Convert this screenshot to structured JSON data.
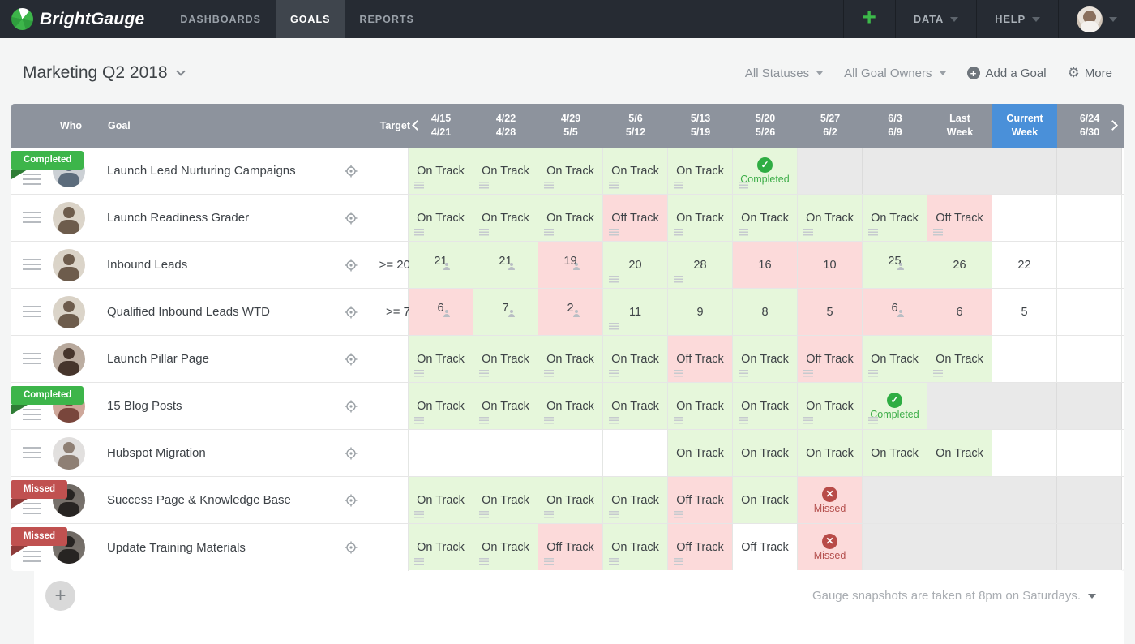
{
  "colors": {
    "accent_green": "#3cb94a",
    "current_week_blue": "#4a90d9",
    "on_track_bg": "#e6f7db",
    "off_track_bg": "#fcdada",
    "disabled_bg": "#e9e9e9",
    "completed_green": "#2fad43",
    "missed_red": "#b84b48"
  },
  "nav": {
    "brand": "BrightGauge",
    "items": [
      {
        "label": "DASHBOARDS",
        "active": false
      },
      {
        "label": "GOALS",
        "active": true
      },
      {
        "label": "REPORTS",
        "active": false
      }
    ],
    "add_label": "+",
    "data_label": "DATA",
    "help_label": "HELP"
  },
  "header": {
    "title": "Marketing Q2 2018",
    "status_filter": "All Statuses",
    "owner_filter": "All Goal Owners",
    "add_goal_label": "Add a Goal",
    "more_label": "More"
  },
  "table": {
    "col_who": "Who",
    "col_goal": "Goal",
    "col_target": "Target",
    "weeks": [
      {
        "top": "4/15",
        "bottom": "4/21"
      },
      {
        "top": "4/22",
        "bottom": "4/28"
      },
      {
        "top": "4/29",
        "bottom": "5/5"
      },
      {
        "top": "5/6",
        "bottom": "5/12"
      },
      {
        "top": "5/13",
        "bottom": "5/19"
      },
      {
        "top": "5/20",
        "bottom": "5/26"
      },
      {
        "top": "5/27",
        "bottom": "6/2"
      },
      {
        "top": "6/3",
        "bottom": "6/9"
      },
      {
        "top": "Last",
        "bottom": "Week"
      },
      {
        "top": "Current",
        "bottom": "Week",
        "current": true
      },
      {
        "top": "6/24",
        "bottom": "6/30"
      }
    ],
    "rows": [
      {
        "badge": "Completed",
        "goal": "Launch Lead Nurturing Campaigns",
        "target": "",
        "avatar": {
          "bg": "#c8cdd2",
          "fg": "#5c6c7c"
        },
        "cells": [
          {
            "text": "On Track",
            "bg": "green",
            "icon": "note"
          },
          {
            "text": "On Track",
            "bg": "green",
            "icon": "note"
          },
          {
            "text": "On Track",
            "bg": "green",
            "icon": "note"
          },
          {
            "text": "On Track",
            "bg": "green",
            "icon": "note"
          },
          {
            "text": "On Track",
            "bg": "green",
            "icon": "note"
          },
          {
            "text": "Completed",
            "bg": "green",
            "mark": "check",
            "icon": "note"
          },
          {
            "bg": "gray"
          },
          {
            "bg": "gray"
          },
          {
            "bg": "gray"
          },
          {
            "bg": "gray"
          },
          {
            "bg": "gray"
          }
        ]
      },
      {
        "badge": null,
        "goal": "Launch Readiness Grader",
        "target": "",
        "avatar": {
          "bg": "#d9d2c6",
          "fg": "#6d5c4c"
        },
        "cells": [
          {
            "text": "On Track",
            "bg": "green",
            "icon": "note"
          },
          {
            "text": "On Track",
            "bg": "green",
            "icon": "note"
          },
          {
            "text": "On Track",
            "bg": "green",
            "icon": "note"
          },
          {
            "text": "Off Track",
            "bg": "red",
            "icon": "note"
          },
          {
            "text": "On Track",
            "bg": "green",
            "icon": "note"
          },
          {
            "text": "On Track",
            "bg": "green",
            "icon": "note"
          },
          {
            "text": "On Track",
            "bg": "green",
            "icon": "note"
          },
          {
            "text": "On Track",
            "bg": "green",
            "icon": "note"
          },
          {
            "text": "Off Track",
            "bg": "red",
            "icon": "note"
          },
          {
            "bg": "white"
          },
          {
            "bg": "white"
          }
        ]
      },
      {
        "badge": null,
        "goal": "Inbound Leads",
        "target": ">= 20",
        "avatar": {
          "bg": "#d9d2c6",
          "fg": "#6d5c4c"
        },
        "cells": [
          {
            "text": "21",
            "bg": "green",
            "icon": "person"
          },
          {
            "text": "21",
            "bg": "green",
            "icon": "person"
          },
          {
            "text": "19",
            "bg": "red",
            "icon": "person"
          },
          {
            "text": "20",
            "bg": "green",
            "icon": "note"
          },
          {
            "text": "28",
            "bg": "green",
            "icon": "note"
          },
          {
            "text": "16",
            "bg": "red"
          },
          {
            "text": "10",
            "bg": "red"
          },
          {
            "text": "25",
            "bg": "green",
            "icon": "person"
          },
          {
            "text": "26",
            "bg": "green"
          },
          {
            "text": "22",
            "bg": "white"
          },
          {
            "bg": "white"
          }
        ]
      },
      {
        "badge": null,
        "goal": "Qualified Inbound Leads WTD",
        "target": ">= 7",
        "avatar": {
          "bg": "#d9d2c6",
          "fg": "#6d5c4c"
        },
        "cells": [
          {
            "text": "6",
            "bg": "red",
            "icon": "person"
          },
          {
            "text": "7",
            "bg": "green",
            "icon": "person"
          },
          {
            "text": "2",
            "bg": "red",
            "icon": "person"
          },
          {
            "text": "11",
            "bg": "green",
            "icon": "note"
          },
          {
            "text": "9",
            "bg": "green"
          },
          {
            "text": "8",
            "bg": "green"
          },
          {
            "text": "5",
            "bg": "red"
          },
          {
            "text": "6",
            "bg": "red",
            "icon": "person"
          },
          {
            "text": "6",
            "bg": "red"
          },
          {
            "text": "5",
            "bg": "white"
          },
          {
            "bg": "white"
          }
        ]
      },
      {
        "badge": null,
        "goal": "Launch Pillar Page",
        "target": "",
        "avatar": {
          "bg": "#b7a89b",
          "fg": "#46352c"
        },
        "cells": [
          {
            "text": "On Track",
            "bg": "green",
            "icon": "note"
          },
          {
            "text": "On Track",
            "bg": "green",
            "icon": "note"
          },
          {
            "text": "On Track",
            "bg": "green",
            "icon": "note"
          },
          {
            "text": "On Track",
            "bg": "green",
            "icon": "note"
          },
          {
            "text": "Off Track",
            "bg": "red",
            "icon": "note"
          },
          {
            "text": "On Track",
            "bg": "green",
            "icon": "note"
          },
          {
            "text": "Off Track",
            "bg": "red",
            "icon": "note"
          },
          {
            "text": "On Track",
            "bg": "green",
            "icon": "note"
          },
          {
            "text": "On Track",
            "bg": "green",
            "icon": "note"
          },
          {
            "bg": "white"
          },
          {
            "bg": "white"
          }
        ]
      },
      {
        "badge": "Completed",
        "goal": "15 Blog Posts",
        "target": "",
        "avatar": {
          "bg": "#cba193",
          "fg": "#79463c"
        },
        "cells": [
          {
            "text": "On Track",
            "bg": "green",
            "icon": "note"
          },
          {
            "text": "On Track",
            "bg": "green",
            "icon": "note"
          },
          {
            "text": "On Track",
            "bg": "green",
            "icon": "note"
          },
          {
            "text": "On Track",
            "bg": "green",
            "icon": "note"
          },
          {
            "text": "On Track",
            "bg": "green",
            "icon": "note"
          },
          {
            "text": "On Track",
            "bg": "green",
            "icon": "note"
          },
          {
            "text": "On Track",
            "bg": "green",
            "icon": "note"
          },
          {
            "text": "Completed",
            "bg": "green",
            "mark": "check",
            "icon": "note"
          },
          {
            "bg": "gray"
          },
          {
            "bg": "gray"
          },
          {
            "bg": "gray"
          }
        ]
      },
      {
        "badge": null,
        "goal": "Hubspot Migration",
        "target": "",
        "avatar": {
          "bg": "#e0dedd",
          "fg": "#8e7f74"
        },
        "cells": [
          {
            "bg": "white"
          },
          {
            "bg": "white"
          },
          {
            "bg": "white"
          },
          {
            "bg": "white"
          },
          {
            "text": "On Track",
            "bg": "green"
          },
          {
            "text": "On Track",
            "bg": "green"
          },
          {
            "text": "On Track",
            "bg": "green"
          },
          {
            "text": "On Track",
            "bg": "green"
          },
          {
            "text": "On Track",
            "bg": "green"
          },
          {
            "bg": "white"
          },
          {
            "bg": "white"
          }
        ]
      },
      {
        "badge": "Missed",
        "goal": "Success Page & Knowledge Base",
        "target": "",
        "avatar": {
          "bg": "#6e6862",
          "fg": "#272422"
        },
        "cells": [
          {
            "text": "On Track",
            "bg": "green",
            "icon": "note"
          },
          {
            "text": "On Track",
            "bg": "green",
            "icon": "note"
          },
          {
            "text": "On Track",
            "bg": "green",
            "icon": "note"
          },
          {
            "text": "On Track",
            "bg": "green",
            "icon": "note"
          },
          {
            "text": "Off Track",
            "bg": "red",
            "icon": "note"
          },
          {
            "text": "On Track",
            "bg": "green"
          },
          {
            "text": "Missed",
            "bg": "red",
            "mark": "x"
          },
          {
            "bg": "gray"
          },
          {
            "bg": "gray"
          },
          {
            "bg": "gray"
          },
          {
            "bg": "gray"
          }
        ]
      },
      {
        "badge": "Missed",
        "goal": "Update Training Materials",
        "target": "",
        "avatar": {
          "bg": "#6e6862",
          "fg": "#272422"
        },
        "cells": [
          {
            "text": "On Track",
            "bg": "green",
            "icon": "note"
          },
          {
            "text": "On Track",
            "bg": "green",
            "icon": "note"
          },
          {
            "text": "Off Track",
            "bg": "red",
            "icon": "note"
          },
          {
            "text": "On Track",
            "bg": "green",
            "icon": "note"
          },
          {
            "text": "Off Track",
            "bg": "red",
            "icon": "note"
          },
          {
            "text": "Off Track",
            "bg": "white"
          },
          {
            "text": "Missed",
            "bg": "red",
            "mark": "x"
          },
          {
            "bg": "gray"
          },
          {
            "bg": "gray"
          },
          {
            "bg": "gray"
          },
          {
            "bg": "gray"
          }
        ]
      }
    ]
  },
  "footer": {
    "add_row_label": "+",
    "snapshot_note": "Gauge snapshots are taken at 8pm on Saturdays."
  }
}
